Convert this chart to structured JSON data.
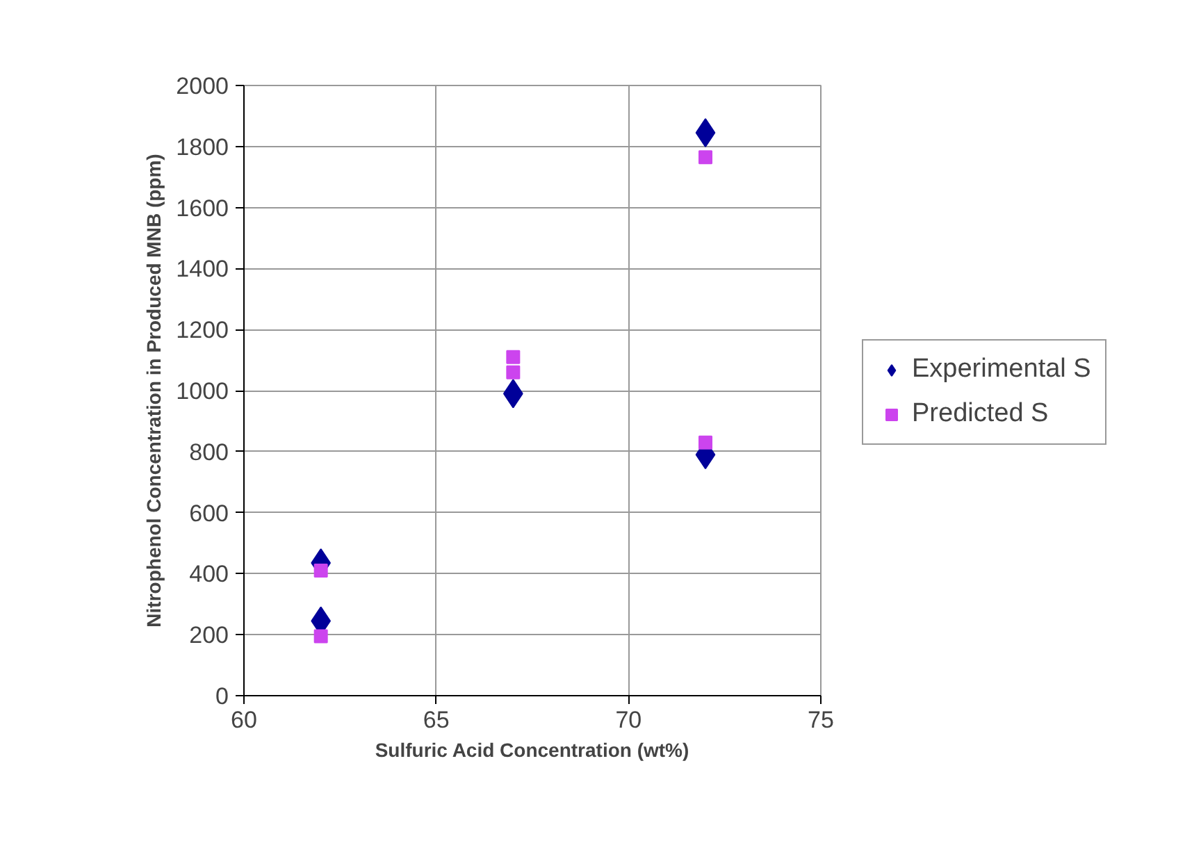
{
  "chart_data": {
    "type": "scatter",
    "xlabel": "Sulfuric Acid Concentration (wt%)",
    "ylabel": "Nitrophenol Concentration in Produced MNB (ppm)",
    "xlim": [
      60,
      75
    ],
    "xticks": [
      60,
      65,
      70,
      75
    ],
    "ylim": [
      0,
      2000
    ],
    "yticks": [
      0,
      200,
      400,
      600,
      800,
      1000,
      1200,
      1400,
      1600,
      1800,
      2000
    ],
    "grid": true,
    "legend": "right",
    "series": [
      {
        "name": "Experimental S",
        "color": "#000099",
        "marker": "diamond",
        "x": [
          62,
          62,
          67,
          72,
          72
        ],
        "values": [
          435,
          245,
          990,
          1845,
          790
        ]
      },
      {
        "name": "Predicted S",
        "color": "#cc44ee",
        "marker": "square",
        "x": [
          62,
          62,
          67,
          67,
          72,
          72
        ],
        "values": [
          410,
          195,
          1110,
          1060,
          1765,
          830
        ]
      }
    ]
  }
}
